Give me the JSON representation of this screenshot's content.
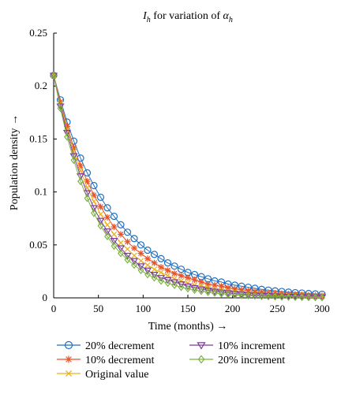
{
  "chart_data": {
    "type": "line",
    "title": "I_h for variation of α_h",
    "title_parts": {
      "var": "I",
      "var_sub": "h",
      "middle": " for variation of ",
      "param": "α",
      "param_sub": "h"
    },
    "xlabel": "Time (months) →",
    "ylabel": "Population density →",
    "xlim": [
      0,
      300
    ],
    "ylim": [
      0,
      0.25
    ],
    "xticks": [
      "0",
      "50",
      "100",
      "150",
      "200",
      "250",
      "300"
    ],
    "yticks": [
      "0",
      "0.05",
      "0.1",
      "0.15",
      "0.2",
      "0.25"
    ],
    "xtick_values": [
      0,
      50,
      100,
      150,
      200,
      250,
      300
    ],
    "ytick_values": [
      0,
      0.05,
      0.1,
      0.15,
      0.2,
      0.25
    ],
    "grid": false,
    "legend_position": "bottom",
    "x": [
      0,
      7.5,
      15,
      22.5,
      30,
      37.5,
      45,
      52.5,
      60,
      67.5,
      75,
      82.5,
      90,
      97.5,
      105,
      112.5,
      120,
      127.5,
      135,
      142.5,
      150,
      157.5,
      165,
      172.5,
      180,
      187.5,
      195,
      202.5,
      210,
      217.5,
      225,
      232.5,
      240,
      247.5,
      255,
      262.5,
      270,
      277.5,
      285,
      292.5,
      300
    ],
    "series": [
      {
        "name": "20% decrement",
        "color": "#1f6fbf",
        "marker": "circle",
        "values": [
          0.21,
          0.187,
          0.166,
          0.148,
          0.132,
          0.118,
          0.106,
          0.095,
          0.085,
          0.077,
          0.069,
          0.062,
          0.056,
          0.05,
          0.045,
          0.041,
          0.037,
          0.033,
          0.03,
          0.027,
          0.024,
          0.022,
          0.02,
          0.018,
          0.016,
          0.015,
          0.013,
          0.012,
          0.011,
          0.01,
          0.009,
          0.008,
          0.0073,
          0.0066,
          0.006,
          0.0054,
          0.0049,
          0.0045,
          0.0041,
          0.0037,
          0.0034
        ]
      },
      {
        "name": "10% decrement",
        "color": "#e8542a",
        "marker": "asterisk",
        "values": [
          0.21,
          0.185,
          0.162,
          0.142,
          0.125,
          0.11,
          0.097,
          0.086,
          0.076,
          0.067,
          0.06,
          0.053,
          0.047,
          0.042,
          0.037,
          0.033,
          0.029,
          0.026,
          0.023,
          0.021,
          0.019,
          0.017,
          0.015,
          0.013,
          0.012,
          0.011,
          0.0095,
          0.0085,
          0.0076,
          0.0068,
          0.0061,
          0.0055,
          0.0049,
          0.0044,
          0.004,
          0.0036,
          0.0032,
          0.0029,
          0.0026,
          0.0023,
          0.0021
        ]
      },
      {
        "name": "Original value",
        "color": "#e8b020",
        "marker": "cross",
        "values": [
          0.21,
          0.183,
          0.159,
          0.138,
          0.12,
          0.104,
          0.091,
          0.079,
          0.069,
          0.06,
          0.052,
          0.046,
          0.04,
          0.035,
          0.031,
          0.027,
          0.024,
          0.021,
          0.018,
          0.016,
          0.014,
          0.012,
          0.011,
          0.0097,
          0.0086,
          0.0076,
          0.0067,
          0.0059,
          0.0052,
          0.0046,
          0.0041,
          0.0036,
          0.0032,
          0.0028,
          0.0025,
          0.0022,
          0.002,
          0.0018,
          0.0016,
          0.0014,
          0.0012
        ]
      },
      {
        "name": "10% increment",
        "color": "#7b3a96",
        "marker": "triangle-down",
        "values": [
          0.21,
          0.181,
          0.156,
          0.134,
          0.115,
          0.099,
          0.085,
          0.073,
          0.063,
          0.054,
          0.047,
          0.04,
          0.035,
          0.03,
          0.026,
          0.022,
          0.019,
          0.017,
          0.015,
          0.013,
          0.011,
          0.0095,
          0.0082,
          0.0071,
          0.0061,
          0.0053,
          0.0046,
          0.004,
          0.0035,
          0.003,
          0.0026,
          0.0023,
          0.002,
          0.0017,
          0.0015,
          0.0013,
          0.0011,
          0.00095,
          0.00082,
          0.00071,
          0.00061
        ]
      },
      {
        "name": "20% increment",
        "color": "#7cb342",
        "marker": "diamond",
        "values": [
          0.21,
          0.179,
          0.152,
          0.13,
          0.11,
          0.094,
          0.08,
          0.068,
          0.058,
          0.049,
          0.042,
          0.036,
          0.031,
          0.026,
          0.022,
          0.019,
          0.016,
          0.014,
          0.012,
          0.01,
          0.0087,
          0.0074,
          0.0063,
          0.0054,
          0.0046,
          0.0039,
          0.0033,
          0.0028,
          0.0024,
          0.0021,
          0.0018,
          0.0015,
          0.0013,
          0.0011,
          0.00094,
          0.0008,
          0.00068,
          0.00058,
          0.00049,
          0.00042,
          0.00036
        ]
      }
    ]
  }
}
